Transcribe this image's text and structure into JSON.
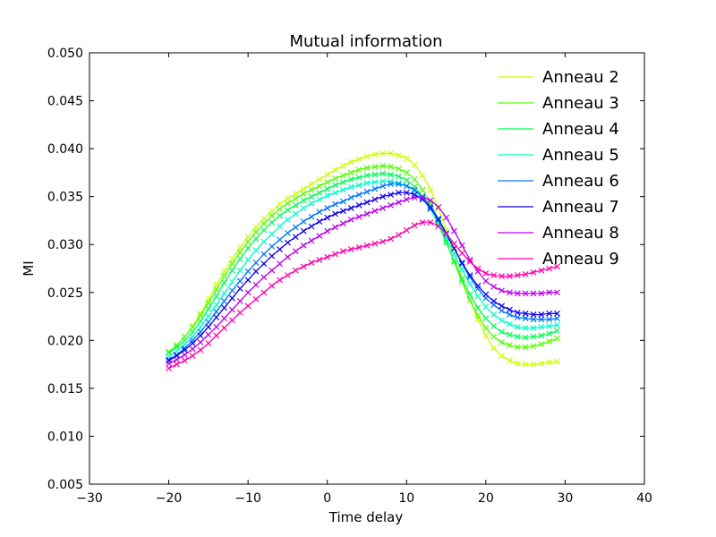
{
  "chart_data": {
    "type": "line",
    "title": "Mutual information",
    "xlabel": "Time delay",
    "ylabel": "MI",
    "xlim": [
      -30,
      40
    ],
    "ylim": [
      0.005,
      0.05
    ],
    "xticks": [
      -30,
      -20,
      -10,
      0,
      10,
      20,
      30,
      40
    ],
    "xtick_labels": [
      "−30",
      "−20",
      "−10",
      "0",
      "10",
      "20",
      "30",
      "40"
    ],
    "yticks": [
      0.005,
      0.01,
      0.015,
      0.02,
      0.025,
      0.03,
      0.035,
      0.04,
      0.045,
      0.05
    ],
    "ytick_labels": [
      "0.005",
      "0.010",
      "0.015",
      "0.020",
      "0.025",
      "0.030",
      "0.035",
      "0.040",
      "0.045",
      "0.050"
    ],
    "grid": false,
    "legend_position": "top-right",
    "x": [
      -20,
      -19,
      -18,
      -17,
      -16,
      -15,
      -14,
      -13,
      -12,
      -11,
      -10,
      -9,
      -8,
      -7,
      -6,
      -5,
      -4,
      -3,
      -2,
      -1,
      0,
      1,
      2,
      3,
      4,
      5,
      6,
      7,
      8,
      9,
      10,
      11,
      12,
      13,
      14,
      15,
      16,
      17,
      18,
      19,
      20,
      21,
      22,
      23,
      24,
      25,
      26,
      27,
      28,
      29
    ],
    "series": [
      {
        "name": "Anneau 2",
        "color": "#ccff00",
        "values": [
          0.0188,
          0.0195,
          0.0204,
          0.0215,
          0.0228,
          0.0243,
          0.0258,
          0.0272,
          0.0285,
          0.0297,
          0.0308,
          0.0318,
          0.0327,
          0.0335,
          0.0342,
          0.0348,
          0.0353,
          0.0358,
          0.0363,
          0.0368,
          0.0373,
          0.0378,
          0.0382,
          0.0386,
          0.0389,
          0.0392,
          0.0394,
          0.0395,
          0.0395,
          0.0393,
          0.039,
          0.0383,
          0.0372,
          0.0357,
          0.0338,
          0.0315,
          0.029,
          0.0265,
          0.0242,
          0.0222,
          0.0205,
          0.0192,
          0.0184,
          0.0179,
          0.0176,
          0.0175,
          0.0175,
          0.0176,
          0.0177,
          0.0178
        ]
      },
      {
        "name": "Anneau 3",
        "color": "#55ff00",
        "values": [
          0.0188,
          0.0195,
          0.0204,
          0.0214,
          0.0226,
          0.0239,
          0.0253,
          0.0267,
          0.028,
          0.0292,
          0.0303,
          0.0313,
          0.0322,
          0.033,
          0.0337,
          0.0343,
          0.0348,
          0.0353,
          0.0357,
          0.0361,
          0.0365,
          0.0369,
          0.0372,
          0.0375,
          0.0378,
          0.038,
          0.0381,
          0.0382,
          0.0381,
          0.0379,
          0.0375,
          0.0368,
          0.0357,
          0.0343,
          0.0325,
          0.0304,
          0.0282,
          0.0261,
          0.0242,
          0.0226,
          0.0213,
          0.0204,
          0.0198,
          0.0195,
          0.0193,
          0.0193,
          0.0194,
          0.0196,
          0.0199,
          0.0202
        ]
      },
      {
        "name": "Anneau 4",
        "color": "#00ff55",
        "values": [
          0.0187,
          0.0193,
          0.02,
          0.0209,
          0.022,
          0.0233,
          0.0246,
          0.026,
          0.0273,
          0.0285,
          0.0296,
          0.0306,
          0.0315,
          0.0323,
          0.033,
          0.0336,
          0.0341,
          0.0346,
          0.035,
          0.0354,
          0.0358,
          0.0362,
          0.0365,
          0.0368,
          0.037,
          0.0372,
          0.0373,
          0.0374,
          0.0373,
          0.0371,
          0.0367,
          0.036,
          0.035,
          0.0337,
          0.0321,
          0.0302,
          0.0283,
          0.0264,
          0.0248,
          0.0234,
          0.0223,
          0.0215,
          0.0209,
          0.0206,
          0.0204,
          0.0203,
          0.0204,
          0.0205,
          0.0207,
          0.021
        ]
      },
      {
        "name": "Anneau 5",
        "color": "#00ffcc",
        "values": [
          0.0183,
          0.0189,
          0.0196,
          0.0204,
          0.0214,
          0.0225,
          0.0237,
          0.0249,
          0.0261,
          0.0273,
          0.0284,
          0.0294,
          0.0303,
          0.0311,
          0.0319,
          0.0326,
          0.0332,
          0.0338,
          0.0343,
          0.0347,
          0.0351,
          0.0354,
          0.0357,
          0.036,
          0.0362,
          0.0364,
          0.0365,
          0.0366,
          0.0366,
          0.0364,
          0.0361,
          0.0356,
          0.0348,
          0.0337,
          0.0323,
          0.0307,
          0.029,
          0.0274,
          0.0259,
          0.0246,
          0.0235,
          0.0227,
          0.0221,
          0.0217,
          0.0214,
          0.0213,
          0.0213,
          0.0214,
          0.0215,
          0.0216
        ]
      },
      {
        "name": "Anneau 6",
        "color": "#0077ff",
        "values": [
          0.018,
          0.0185,
          0.0192,
          0.02,
          0.0209,
          0.0219,
          0.023,
          0.0241,
          0.0252,
          0.0262,
          0.0272,
          0.0281,
          0.029,
          0.0298,
          0.0305,
          0.0312,
          0.0318,
          0.0324,
          0.0329,
          0.0334,
          0.0338,
          0.0342,
          0.0345,
          0.0349,
          0.0352,
          0.0355,
          0.0358,
          0.0361,
          0.0363,
          0.0363,
          0.0361,
          0.0357,
          0.035,
          0.034,
          0.0327,
          0.0312,
          0.0296,
          0.028,
          0.0266,
          0.0254,
          0.0244,
          0.0237,
          0.0231,
          0.0227,
          0.0224,
          0.0223,
          0.0222,
          0.0222,
          0.0222,
          0.0223
        ]
      },
      {
        "name": "Anneau 7",
        "color": "#1100ee",
        "values": [
          0.0179,
          0.0184,
          0.019,
          0.0197,
          0.0205,
          0.0214,
          0.0224,
          0.0234,
          0.0244,
          0.0254,
          0.0263,
          0.0272,
          0.028,
          0.0288,
          0.0295,
          0.0302,
          0.0308,
          0.0314,
          0.0319,
          0.0324,
          0.0328,
          0.0332,
          0.0335,
          0.0338,
          0.0341,
          0.0344,
          0.0347,
          0.035,
          0.0352,
          0.0354,
          0.0354,
          0.0352,
          0.0347,
          0.0338,
          0.0326,
          0.0311,
          0.0296,
          0.0281,
          0.0268,
          0.0257,
          0.0248,
          0.0241,
          0.0236,
          0.0232,
          0.0229,
          0.0228,
          0.0227,
          0.0227,
          0.0228,
          0.0228
        ]
      },
      {
        "name": "Anneau 8",
        "color": "#bb00ee",
        "values": [
          0.0176,
          0.018,
          0.0185,
          0.0191,
          0.0198,
          0.0206,
          0.0214,
          0.0223,
          0.0232,
          0.0241,
          0.025,
          0.0258,
          0.0266,
          0.0273,
          0.028,
          0.0287,
          0.0293,
          0.0299,
          0.0304,
          0.0309,
          0.0314,
          0.0318,
          0.0322,
          0.0326,
          0.0329,
          0.0332,
          0.0335,
          0.0338,
          0.0341,
          0.0344,
          0.0347,
          0.0349,
          0.0349,
          0.0346,
          0.0339,
          0.0328,
          0.0314,
          0.0299,
          0.0284,
          0.0272,
          0.0262,
          0.0256,
          0.0252,
          0.025,
          0.0249,
          0.0249,
          0.0249,
          0.0249,
          0.025,
          0.025
        ]
      },
      {
        "name": "Anneau 9",
        "color": "#ff00aa",
        "values": [
          0.0171,
          0.0175,
          0.0179,
          0.0184,
          0.019,
          0.0197,
          0.0205,
          0.0213,
          0.0221,
          0.0229,
          0.0236,
          0.0243,
          0.025,
          0.0257,
          0.0263,
          0.0268,
          0.0273,
          0.0277,
          0.0281,
          0.0284,
          0.0287,
          0.029,
          0.0293,
          0.0295,
          0.0297,
          0.0299,
          0.0301,
          0.0303,
          0.0306,
          0.031,
          0.0315,
          0.032,
          0.0323,
          0.0323,
          0.0319,
          0.0311,
          0.0301,
          0.0291,
          0.0282,
          0.0275,
          0.027,
          0.0268,
          0.0267,
          0.0267,
          0.0268,
          0.0269,
          0.0271,
          0.0273,
          0.0275,
          0.0277
        ]
      }
    ]
  }
}
